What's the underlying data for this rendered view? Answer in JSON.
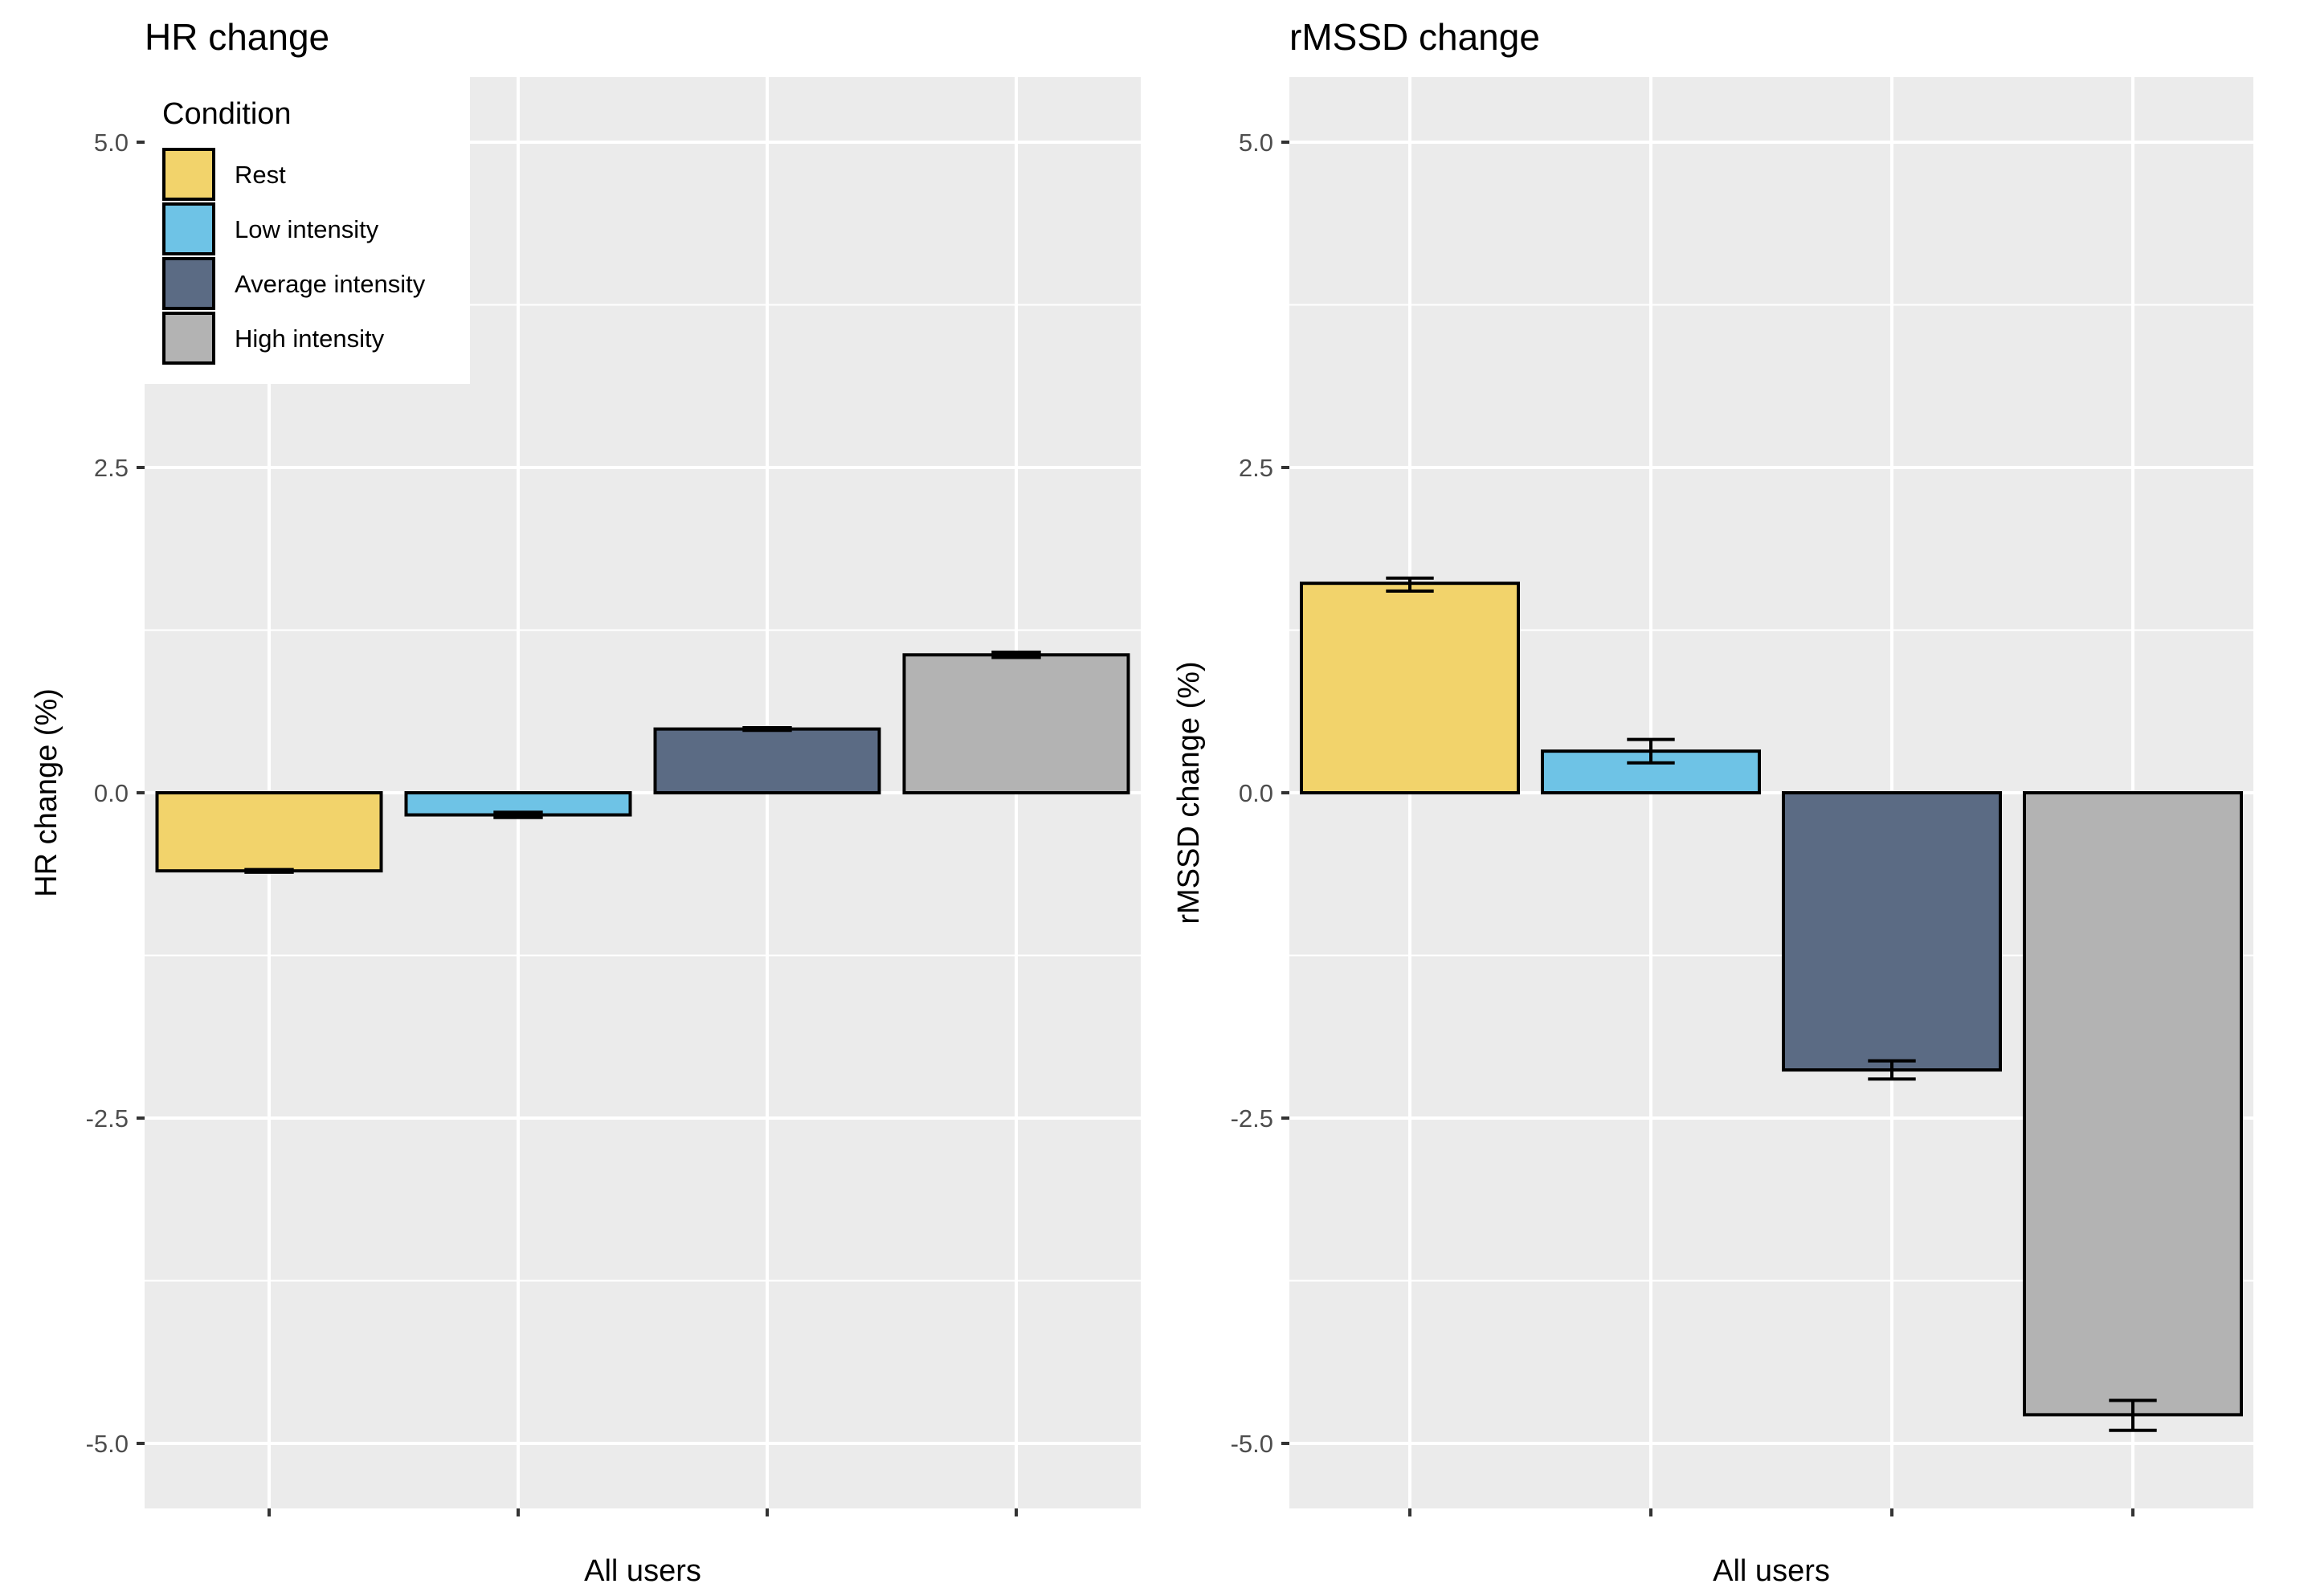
{
  "legend": {
    "title": "Condition",
    "items": [
      {
        "label": "Rest",
        "color": "#F2D36B"
      },
      {
        "label": "Low intensity",
        "color": "#6EC3E6"
      },
      {
        "label": "Average intensity",
        "color": "#5B6B84"
      },
      {
        "label": "High intensity",
        "color": "#B3B3B3"
      }
    ]
  },
  "chart_data": [
    {
      "type": "bar",
      "title": "HR change",
      "xlabel": "All users",
      "ylabel": "HR change (%)",
      "ylim": [
        -5.5,
        5.5
      ],
      "yticks": [
        5.0,
        2.5,
        0.0,
        -2.5,
        -5.0
      ],
      "ytick_labels": [
        "5.0",
        "2.5",
        "0.0",
        "-2.5",
        "-5.0"
      ],
      "categories": [
        "Rest",
        "Low intensity",
        "Average intensity",
        "High intensity"
      ],
      "values": [
        -0.6,
        -0.17,
        0.49,
        1.06
      ],
      "error_low": [
        -0.61,
        -0.19,
        0.48,
        1.04
      ],
      "error_high": [
        -0.59,
        -0.15,
        0.5,
        1.08
      ]
    },
    {
      "type": "bar",
      "title": "rMSSD change",
      "xlabel": "All users",
      "ylabel": "rMSSD change (%)",
      "ylim": [
        -5.5,
        5.5
      ],
      "yticks": [
        5.0,
        2.5,
        0.0,
        -2.5,
        -5.0
      ],
      "ytick_labels": [
        "5.0",
        "2.5",
        "0.0",
        "-2.5",
        "-5.0"
      ],
      "categories": [
        "Rest",
        "Low intensity",
        "Average intensity",
        "High intensity"
      ],
      "values": [
        1.61,
        0.32,
        -2.13,
        -4.78
      ],
      "error_low": [
        1.55,
        0.23,
        -2.2,
        -4.9
      ],
      "error_high": [
        1.65,
        0.41,
        -2.06,
        -4.67
      ]
    }
  ]
}
